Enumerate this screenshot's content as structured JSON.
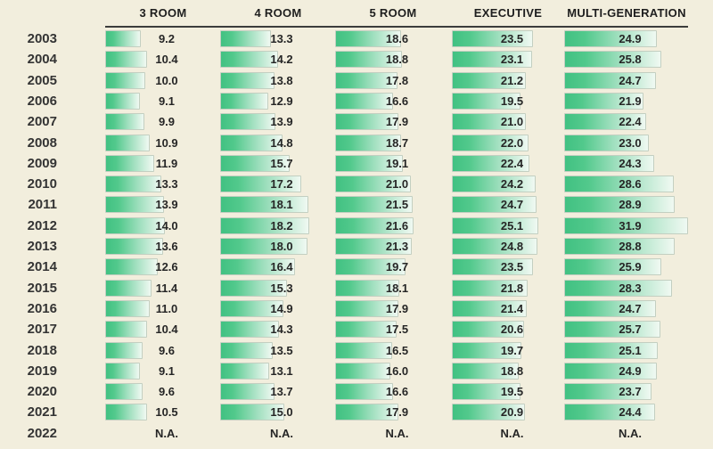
{
  "na_label": "N.A.",
  "colors": {
    "background": "#f2eedd",
    "bar_gradient_start": "#41c182",
    "bar_gradient_end": "#f0f9f2",
    "bar_border": "#c3cfc1",
    "header_rule": "#3c3c3c",
    "text": "#262626"
  },
  "chart_data": {
    "type": "bar",
    "orientation": "horizontal",
    "legend_position": "top",
    "grid": false,
    "categories": [
      "2003",
      "2004",
      "2005",
      "2006",
      "2007",
      "2008",
      "2009",
      "2010",
      "2011",
      "2012",
      "2013",
      "2014",
      "2015",
      "2016",
      "2017",
      "2018",
      "2019",
      "2020",
      "2021",
      "2022"
    ],
    "na_label": "N.A.",
    "series": [
      {
        "name": "3 ROOM",
        "values": [
          9.2,
          10.4,
          10.0,
          9.1,
          9.9,
          10.9,
          11.9,
          13.3,
          13.9,
          14.0,
          13.6,
          12.6,
          11.4,
          11.0,
          10.4,
          9.6,
          9.1,
          9.6,
          10.5,
          null
        ],
        "values_display": [
          "9.2",
          "10.4",
          "10.0",
          "9.1",
          "9.9",
          "10.9",
          "11.9",
          "13.3",
          "13.9",
          "14.0",
          "13.6",
          "12.6",
          "11.4",
          "11.0",
          "10.4",
          "9.6",
          "9.1",
          "9.6",
          "10.5",
          "N.A."
        ]
      },
      {
        "name": "4 ROOM",
        "values": [
          13.3,
          14.2,
          13.8,
          12.9,
          13.9,
          14.8,
          15.7,
          17.2,
          18.1,
          18.2,
          18.0,
          16.4,
          15.3,
          14.9,
          14.3,
          13.5,
          13.1,
          13.7,
          15.0,
          null
        ],
        "values_display": [
          "13.3",
          "14.2",
          "13.8",
          "12.9",
          "13.9",
          "14.8",
          "15.7",
          "17.2",
          "18.1",
          "18.2",
          "18.0",
          "16.4",
          "15.3",
          "14.9",
          "14.3",
          "13.5",
          "13.1",
          "13.7",
          "15.0",
          "N.A."
        ]
      },
      {
        "name": "5 ROOM",
        "values": [
          18.6,
          18.8,
          17.8,
          16.6,
          17.9,
          18.7,
          19.1,
          21.0,
          21.5,
          21.6,
          21.3,
          19.7,
          18.1,
          17.9,
          17.5,
          16.5,
          16.0,
          16.6,
          17.9,
          null
        ],
        "values_display": [
          "18.6",
          "18.8",
          "17.8",
          "16.6",
          "17.9",
          "18.7",
          "19.1",
          "21.0",
          "21.5",
          "21.6",
          "21.3",
          "19.7",
          "18.1",
          "17.9",
          "17.5",
          "16.5",
          "16.0",
          "16.6",
          "17.9",
          "N.A."
        ]
      },
      {
        "name": "EXECUTIVE",
        "values": [
          23.5,
          23.1,
          21.2,
          19.5,
          21.0,
          22.0,
          22.4,
          24.2,
          24.7,
          25.1,
          24.8,
          23.5,
          21.8,
          21.4,
          20.6,
          19.7,
          18.8,
          19.5,
          20.9,
          null
        ],
        "values_display": [
          "23.5",
          "23.1",
          "21.2",
          "19.5",
          "21.0",
          "22.0",
          "22.4",
          "24.2",
          "24.7",
          "25.1",
          "24.8",
          "23.5",
          "21.8",
          "21.4",
          "20.6",
          "19.7",
          "18.8",
          "19.5",
          "20.9",
          "N.A."
        ]
      },
      {
        "name": "MULTI-GENERATION",
        "values": [
          24.9,
          25.8,
          24.7,
          21.9,
          22.4,
          23.0,
          24.3,
          28.6,
          28.9,
          31.9,
          28.8,
          25.9,
          28.3,
          24.7,
          25.7,
          25.1,
          24.9,
          23.7,
          24.4,
          null
        ],
        "values_display": [
          "24.9",
          "25.8",
          "24.7",
          "21.9",
          "22.4",
          "23.0",
          "24.3",
          "28.6",
          "28.9",
          "31.9",
          "28.8",
          "25.9",
          "28.3",
          "24.7",
          "25.7",
          "25.1",
          "24.9",
          "23.7",
          "24.4",
          "N.A."
        ]
      }
    ]
  }
}
